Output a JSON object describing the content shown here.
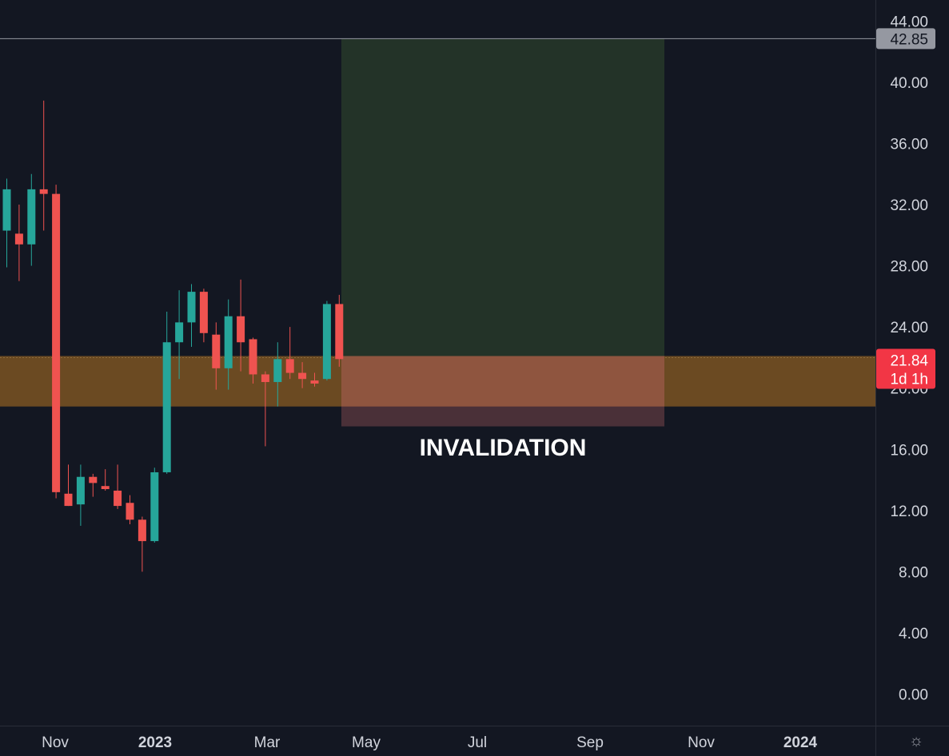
{
  "chart_data": {
    "type": "candlestick",
    "title": "",
    "ylim": [
      0,
      44
    ],
    "y_ticks": [
      "44.00",
      "40.00",
      "36.00",
      "32.00",
      "28.00",
      "24.00",
      "20.00",
      "16.00",
      "12.00",
      "8.00",
      "4.00",
      "0.00"
    ],
    "x_ticks": [
      {
        "label": "Nov",
        "bold": false
      },
      {
        "label": "2023",
        "bold": true
      },
      {
        "label": "Mar",
        "bold": false
      },
      {
        "label": "May",
        "bold": false
      },
      {
        "label": "Jul",
        "bold": false
      },
      {
        "label": "Sep",
        "bold": false
      },
      {
        "label": "Nov",
        "bold": false
      },
      {
        "label": "2024",
        "bold": true
      }
    ],
    "candles": [
      {
        "o": 30.3,
        "h": 33.7,
        "l": 27.9,
        "c": 33.0
      },
      {
        "o": 30.1,
        "h": 32.0,
        "l": 27.0,
        "c": 29.4
      },
      {
        "o": 29.4,
        "h": 34.0,
        "l": 28.0,
        "c": 33.0
      },
      {
        "o": 33.0,
        "h": 38.8,
        "l": 30.3,
        "c": 32.7
      },
      {
        "o": 32.7,
        "h": 33.3,
        "l": 12.8,
        "c": 13.2
      },
      {
        "o": 13.1,
        "h": 15.0,
        "l": 12.3,
        "c": 12.3
      },
      {
        "o": 12.4,
        "h": 15.0,
        "l": 11.0,
        "c": 14.2
      },
      {
        "o": 14.2,
        "h": 14.4,
        "l": 12.9,
        "c": 13.8
      },
      {
        "o": 13.6,
        "h": 14.7,
        "l": 13.3,
        "c": 13.4
      },
      {
        "o": 13.3,
        "h": 15.0,
        "l": 12.1,
        "c": 12.3
      },
      {
        "o": 12.5,
        "h": 13.0,
        "l": 11.1,
        "c": 11.4
      },
      {
        "o": 11.4,
        "h": 11.6,
        "l": 8.0,
        "c": 10.0
      },
      {
        "o": 10.0,
        "h": 14.8,
        "l": 9.9,
        "c": 14.5
      },
      {
        "o": 14.5,
        "h": 25.0,
        "l": 14.4,
        "c": 23.0
      },
      {
        "o": 23.0,
        "h": 26.4,
        "l": 20.6,
        "c": 24.3
      },
      {
        "o": 24.3,
        "h": 26.8,
        "l": 22.7,
        "c": 26.3
      },
      {
        "o": 26.3,
        "h": 26.5,
        "l": 23.0,
        "c": 23.6
      },
      {
        "o": 23.5,
        "h": 24.3,
        "l": 19.9,
        "c": 21.3
      },
      {
        "o": 21.3,
        "h": 25.8,
        "l": 19.9,
        "c": 24.7
      },
      {
        "o": 24.7,
        "h": 27.1,
        "l": 21.1,
        "c": 23.0
      },
      {
        "o": 23.2,
        "h": 23.3,
        "l": 20.3,
        "c": 20.9
      },
      {
        "o": 20.9,
        "h": 21.1,
        "l": 16.2,
        "c": 20.4
      },
      {
        "o": 20.4,
        "h": 23.0,
        "l": 18.8,
        "c": 21.9
      },
      {
        "o": 21.9,
        "h": 24.0,
        "l": 20.6,
        "c": 21.0
      },
      {
        "o": 21.0,
        "h": 21.7,
        "l": 20.0,
        "c": 20.6
      },
      {
        "o": 20.5,
        "h": 21.0,
        "l": 20.1,
        "c": 20.3
      },
      {
        "o": 20.6,
        "h": 25.7,
        "l": 20.5,
        "c": 25.5
      },
      {
        "o": 25.5,
        "h": 26.1,
        "l": 21.4,
        "c": 21.9
      }
    ],
    "colors": {
      "up": "#26a69a",
      "down": "#ef5350",
      "background": "#131722",
      "target_zone": "#233328",
      "stop_zone": "#4a3038",
      "support_band": "#6b4a22",
      "price_tag": "#f23645",
      "target_tag": "#9598a1"
    },
    "support_band": [
      18.8,
      22.1
    ],
    "target_zone": [
      22.1,
      42.85
    ],
    "stop_zone": [
      17.5,
      22.1
    ],
    "target_line": 42.85,
    "target_label": "42.85",
    "last_price": 21.84,
    "last_price_label": "21.84",
    "countdown_label": "1d 1h",
    "annotation": "INVALIDATION"
  },
  "toolbar": {
    "settings_icon": "sun-settings-icon"
  }
}
